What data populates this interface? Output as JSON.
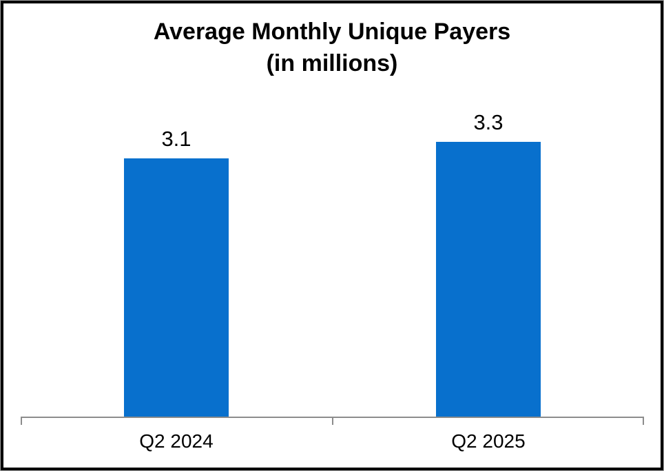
{
  "chart_data": {
    "type": "bar",
    "title": "Average Monthly Unique Payers",
    "subtitle": "(in millions)",
    "categories": [
      "Q2 2024",
      "Q2 2025"
    ],
    "values": [
      3.1,
      3.3
    ],
    "data_labels": [
      "3.1",
      "3.3"
    ],
    "xlabel": "",
    "ylabel": "",
    "ylim": [
      0,
      4
    ],
    "grid": false,
    "legend": false,
    "bar_color": "#0870CD",
    "axis_color": "#8C8C8C",
    "text_color": "#000000",
    "pixels_per_unit": 121
  },
  "frame": {
    "background": "#FFFFFF",
    "border_color": "#000000"
  }
}
